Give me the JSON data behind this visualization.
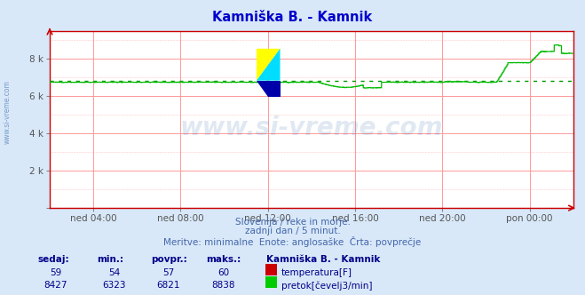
{
  "title": "Kamniška B. - Kamnik",
  "title_color": "#0000cc",
  "bg_color": "#d8e8f8",
  "plot_bg_color": "#ffffff",
  "grid_color": "#ff9999",
  "ylabel_ticks": [
    "",
    "2 k",
    "4 k",
    "6 k",
    "8 k"
  ],
  "ytick_vals": [
    0,
    2000,
    4000,
    6000,
    8000
  ],
  "ylim": [
    0,
    9500
  ],
  "xtick_labels": [
    "ned 04:00",
    "ned 08:00",
    "ned 12:00",
    "ned 16:00",
    "ned 20:00",
    "pon 00:00"
  ],
  "xtick_positions": [
    48,
    144,
    240,
    336,
    432,
    528
  ],
  "n_points": 576,
  "flow_avg": 6821,
  "flow_min": 6323,
  "flow_max": 8838,
  "flow_current": 8427,
  "temp_avg": 57,
  "temp_min": 54,
  "temp_max": 60,
  "temp_current": 59,
  "avg_line_color": "#009900",
  "flow_line_color": "#00bb00",
  "temp_line_color": "#dd0000",
  "watermark_color": "#3366aa",
  "subtitle_color": "#4466aa",
  "legend_title": "Kamniška B. - Kamnik",
  "legend_title_color": "#000088",
  "legend_color": "#000088",
  "sedaj_label": "sedaj:",
  "min_label": "min.:",
  "povpr_label": "povpr.:",
  "maks_label": "maks.:",
  "axes_border_color": "#cc0000",
  "subtitle1": "Slovenija / reke in morje.",
  "subtitle2": "zadnji dan / 5 minut.",
  "subtitle3": "Meritve: minimalne  Enote: anglosaške  Črta: povprečje",
  "left_margin_text": "www.si-vreme.com"
}
